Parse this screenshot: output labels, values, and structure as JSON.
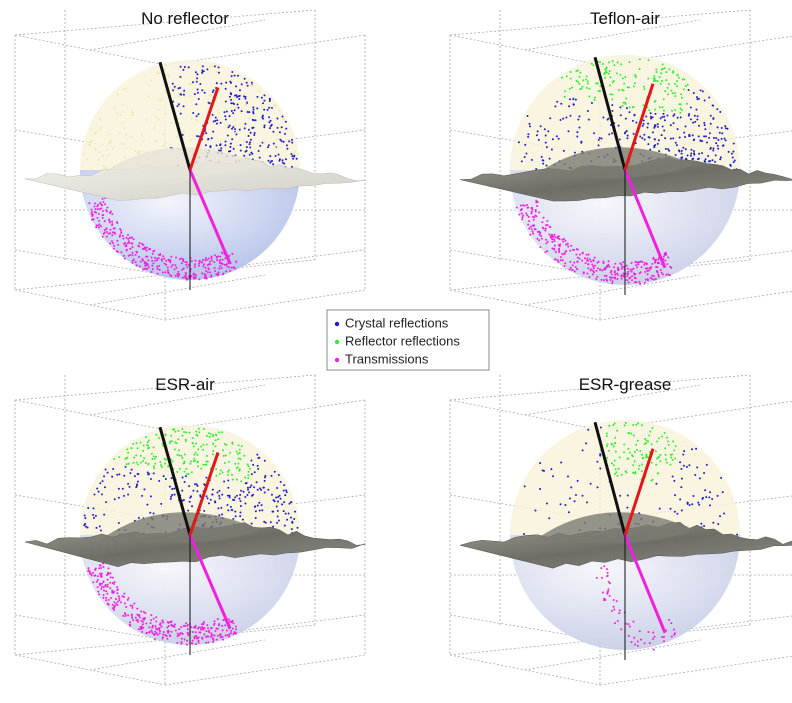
{
  "panels": [
    {
      "title": "No reflector"
    },
    {
      "title": "Teflon-air"
    },
    {
      "title": "ESR-air"
    },
    {
      "title": "ESR-grease"
    }
  ],
  "legend": {
    "entries": [
      {
        "label": "Crystal reflections",
        "color": "#1f1fc8"
      },
      {
        "label": "Reflector reflections",
        "color": "#33ee33"
      },
      {
        "label": "Transmissions",
        "color": "#ee22dd"
      }
    ]
  }
}
